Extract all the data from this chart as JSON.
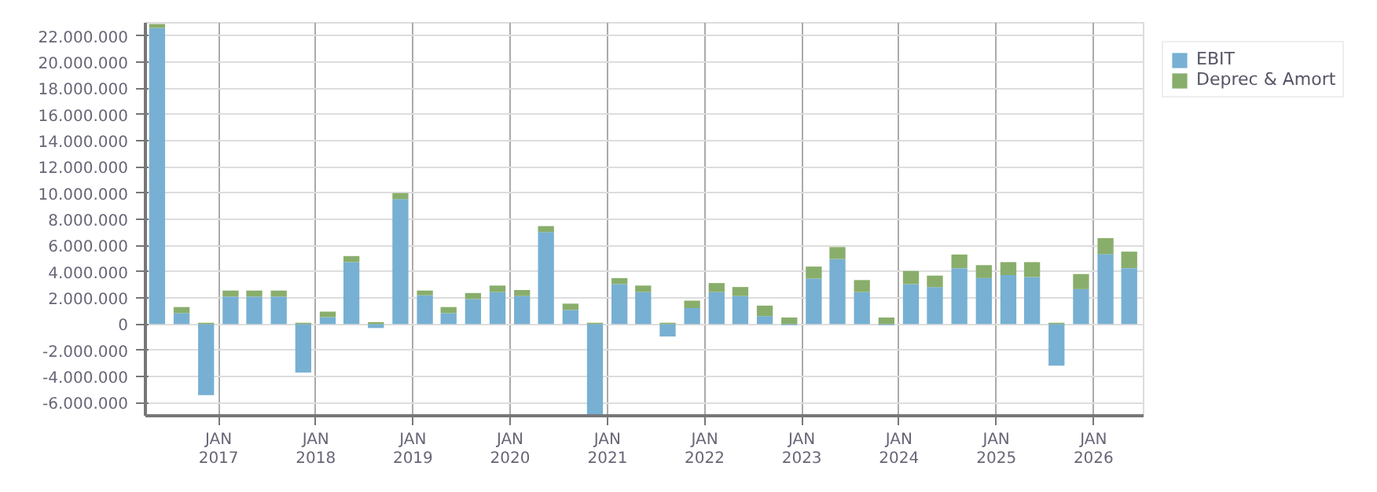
{
  "chart_data": {
    "type": "bar",
    "stacked": true,
    "grid": true,
    "legend": "top right",
    "x": [
      "2016-05-15",
      "2016-08-15",
      "2016-11-15",
      "2017-02-15",
      "2017-05-15",
      "2017-08-15",
      "2017-11-15",
      "2018-02-15",
      "2018-05-15",
      "2018-08-15",
      "2018-11-15",
      "2019-02-15",
      "2019-05-15",
      "2019-08-15",
      "2019-11-15",
      "2020-02-15",
      "2020-05-15",
      "2020-08-15",
      "2020-11-15",
      "2021-02-15",
      "2021-05-15",
      "2021-08-15",
      "2021-11-15",
      "2022-02-15",
      "2022-05-15",
      "2022-08-15",
      "2022-11-15",
      "2023-02-15",
      "2023-05-15",
      "2023-08-15",
      "2023-11-15",
      "2024-02-15",
      "2024-05-15",
      "2024-08-15",
      "2024-11-15",
      "2025-02-15",
      "2025-05-15",
      "2025-08-15",
      "2025-11-15",
      "2026-02-15",
      "2026-05-15"
    ],
    "series": [
      {
        "name": "EBIT",
        "color": "#77b0d3",
        "values": [
          22600000,
          840000,
          -5420000,
          2100000,
          2100000,
          2100000,
          -3700000,
          530000,
          4730000,
          -300000,
          9540000,
          2200000,
          840000,
          1910000,
          2440000,
          2140000,
          7020000,
          1070000,
          -6950000,
          3050000,
          2440000,
          -950000,
          1220000,
          2440000,
          2140000,
          610000,
          -80000,
          3470000,
          4960000,
          2440000,
          -80000,
          3050000,
          2820000,
          4270000,
          3510000,
          3740000,
          3590000,
          -3170000,
          2670000,
          5340000,
          4270000
        ]
      },
      {
        "name": "Deprec & Amort",
        "color": "#89ae6b",
        "values": [
          310000,
          460000,
          100000,
          460000,
          460000,
          460000,
          100000,
          420000,
          460000,
          150000,
          460000,
          360000,
          460000,
          460000,
          500000,
          460000,
          460000,
          490000,
          100000,
          460000,
          500000,
          100000,
          570000,
          690000,
          690000,
          800000,
          500000,
          920000,
          920000,
          920000,
          500000,
          1000000,
          880000,
          1040000,
          990000,
          990000,
          1140000,
          100000,
          1150000,
          1220000,
          1260000
        ]
      }
    ],
    "xlim": [
      "2016-04-01",
      "2026-07-08"
    ],
    "xticks": [
      {
        "value": "2017-01-01",
        "label": "JAN\n2017"
      },
      {
        "value": "2018-01-01",
        "label": "JAN\n2018"
      },
      {
        "value": "2019-01-01",
        "label": "JAN\n2019"
      },
      {
        "value": "2020-01-01",
        "label": "JAN\n2020"
      },
      {
        "value": "2021-01-01",
        "label": "JAN\n2021"
      },
      {
        "value": "2022-01-01",
        "label": "JAN\n2022"
      },
      {
        "value": "2023-01-01",
        "label": "JAN\n2023"
      },
      {
        "value": "2024-01-01",
        "label": "JAN\n2024"
      },
      {
        "value": "2025-01-01",
        "label": "JAN\n2025"
      },
      {
        "value": "2026-01-01",
        "label": "JAN\n2026"
      }
    ],
    "ylim": [
      -7000000,
      23000000
    ],
    "yticks": [
      {
        "value": -6000000,
        "label": "-6.000.000"
      },
      {
        "value": -4000000,
        "label": "-4.000.000"
      },
      {
        "value": -2000000,
        "label": "-2.000.000"
      },
      0,
      {
        "value": 2000000,
        "label": "2.000.000"
      },
      {
        "value": 4000000,
        "label": "4.000.000"
      },
      {
        "value": 6000000,
        "label": "6.000.000"
      },
      {
        "value": 8000000,
        "label": "8.000.000"
      },
      {
        "value": 10000000,
        "label": "10.000.000"
      },
      {
        "value": 12000000,
        "label": "12.000.000"
      },
      {
        "value": 14000000,
        "label": "14.000.000"
      },
      {
        "value": 16000000,
        "label": "16.000.000"
      },
      {
        "value": 18000000,
        "label": "18.000.000"
      },
      {
        "value": 20000000,
        "label": "20.000.000"
      },
      {
        "value": 22000000,
        "label": "22.000.000"
      }
    ]
  }
}
